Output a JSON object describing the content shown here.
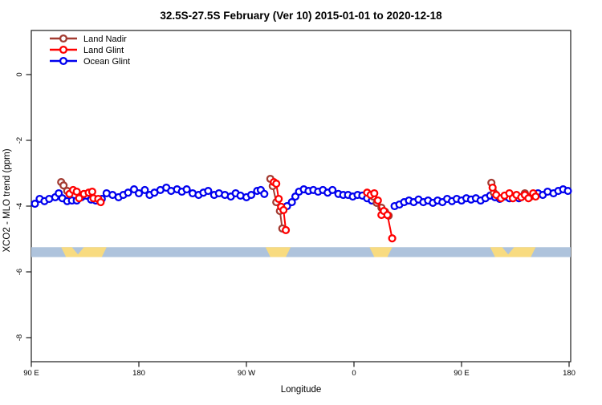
{
  "title": "32.5S-27.5S February (Ver 10)  2015-01-01 to 2020-12-18",
  "title_left": "32.5S-27.5S February (Ver 10)",
  "title_right": "2015-01-01 to 2020-12-18",
  "chart_data": {
    "type": "line",
    "title": "32.5S-27.5S February (Ver 10)  2015-01-01 to 2020-12-18",
    "xlabel": "Longitude",
    "ylabel": "XCO2 - MLO trend (ppm)",
    "x_axis": {
      "unit": "degrees eastward along axis starting at 90E (axis wraps 90E→180→90W→0→90E→180)",
      "range_deg": [
        0,
        450
      ],
      "tick_positions_deg": [
        0,
        90,
        180,
        270,
        360,
        450
      ],
      "tick_labels": [
        "90 E",
        "180",
        "90 W",
        "0",
        "90 E",
        "180"
      ]
    },
    "y_axis": {
      "ticks": [
        0,
        -2,
        -4,
        -6,
        -8
      ],
      "ylim": [
        -8.7,
        1.35
      ],
      "grid": false
    },
    "legend": {
      "position": "top-left",
      "entries": [
        {
          "label": "Land Nadir",
          "color": "#A33C32"
        },
        {
          "label": "Land Glint",
          "color": "#FF0000"
        },
        {
          "label": "Ocean Glint",
          "color": "#0000EE"
        }
      ]
    },
    "series": [
      {
        "name": "Land Nadir",
        "color": "#A33C32",
        "segments": [
          [
            [
              25,
              -3.27
            ],
            [
              27,
              -3.37
            ],
            [
              30,
              -3.54
            ]
          ],
          [
            [
              200,
              -3.17
            ],
            [
              202,
              -3.39
            ],
            [
              205,
              -3.88
            ],
            [
              208,
              -4.15
            ],
            [
              210,
              -4.68
            ]
          ],
          [
            [
              286,
              -3.71
            ],
            [
              289,
              -3.9
            ],
            [
              293,
              -4.05
            ],
            [
              296,
              -4.17
            ],
            [
              299,
              -4.29
            ]
          ],
          [
            [
              385,
              -3.29
            ],
            [
              387,
              -3.59
            ]
          ],
          [
            [
              413,
              -3.61
            ],
            [
              417,
              -3.73
            ]
          ]
        ]
      },
      {
        "name": "Land Glint",
        "color": "#FF0000",
        "segments": [
          [
            [
              32,
              -3.63
            ],
            [
              35,
              -3.51
            ],
            [
              38,
              -3.56
            ],
            [
              40,
              -3.76
            ],
            [
              44,
              -3.63
            ],
            [
              48,
              -3.59
            ],
            [
              51,
              -3.56
            ],
            [
              52,
              -3.76
            ],
            [
              56,
              -3.78
            ],
            [
              58,
              -3.88
            ]
          ],
          [
            [
              203,
              -3.27
            ],
            [
              205,
              -3.32
            ],
            [
              207,
              -3.78
            ],
            [
              209,
              -4.02
            ],
            [
              211,
              -4.12
            ],
            [
              213,
              -4.73
            ]
          ],
          [
            [
              281,
              -3.59
            ],
            [
              284,
              -3.66
            ],
            [
              287,
              -3.61
            ],
            [
              290,
              -3.83
            ],
            [
              293,
              -4.27
            ],
            [
              295,
              -4.15
            ],
            [
              298,
              -4.27
            ],
            [
              302,
              -4.98
            ]
          ],
          [
            [
              386,
              -3.44
            ],
            [
              389,
              -3.66
            ],
            [
              393,
              -3.76
            ],
            [
              396,
              -3.68
            ],
            [
              400,
              -3.61
            ],
            [
              403,
              -3.76
            ],
            [
              406,
              -3.66
            ],
            [
              410,
              -3.73
            ],
            [
              413,
              -3.66
            ],
            [
              416,
              -3.76
            ],
            [
              420,
              -3.61
            ],
            [
              422,
              -3.71
            ]
          ]
        ]
      },
      {
        "name": "Ocean Glint",
        "color": "#0000EE",
        "segments": [
          [
            [
              3,
              -3.93
            ],
            [
              7,
              -3.78
            ],
            [
              11,
              -3.85
            ],
            [
              15,
              -3.78
            ],
            [
              20,
              -3.73
            ],
            [
              23,
              -3.61
            ],
            [
              26,
              -3.76
            ],
            [
              30,
              -3.85
            ],
            [
              34,
              -3.83
            ],
            [
              38,
              -3.83
            ],
            [
              42,
              -3.73
            ],
            [
              46,
              -3.68
            ],
            [
              50,
              -3.8
            ],
            [
              54,
              -3.83
            ],
            [
              59,
              -3.78
            ],
            [
              63,
              -3.61
            ],
            [
              68,
              -3.66
            ],
            [
              73,
              -3.73
            ],
            [
              77,
              -3.66
            ],
            [
              81,
              -3.59
            ],
            [
              86,
              -3.49
            ],
            [
              90,
              -3.61
            ],
            [
              95,
              -3.51
            ],
            [
              99,
              -3.66
            ],
            [
              103,
              -3.59
            ],
            [
              108,
              -3.51
            ],
            [
              113,
              -3.44
            ],
            [
              117,
              -3.54
            ],
            [
              122,
              -3.49
            ],
            [
              126,
              -3.56
            ],
            [
              130,
              -3.49
            ],
            [
              135,
              -3.61
            ],
            [
              140,
              -3.66
            ],
            [
              144,
              -3.59
            ],
            [
              148,
              -3.54
            ],
            [
              153,
              -3.66
            ],
            [
              157,
              -3.61
            ],
            [
              162,
              -3.66
            ],
            [
              167,
              -3.71
            ],
            [
              171,
              -3.61
            ],
            [
              175,
              -3.68
            ],
            [
              180,
              -3.73
            ],
            [
              184,
              -3.66
            ],
            [
              189,
              -3.54
            ],
            [
              192,
              -3.51
            ],
            [
              195,
              -3.63
            ]
          ],
          [
            [
              214,
              -4.0
            ],
            [
              218,
              -3.88
            ],
            [
              221,
              -3.71
            ],
            [
              224,
              -3.56
            ],
            [
              228,
              -3.49
            ],
            [
              232,
              -3.54
            ],
            [
              236,
              -3.51
            ],
            [
              240,
              -3.56
            ],
            [
              244,
              -3.51
            ],
            [
              248,
              -3.59
            ],
            [
              252,
              -3.51
            ],
            [
              257,
              -3.63
            ],
            [
              261,
              -3.66
            ],
            [
              265,
              -3.66
            ],
            [
              269,
              -3.71
            ],
            [
              273,
              -3.66
            ],
            [
              277,
              -3.68
            ],
            [
              281,
              -3.76
            ],
            [
              285,
              -3.83
            ]
          ],
          [
            [
              304,
              -4.0
            ],
            [
              308,
              -3.95
            ],
            [
              312,
              -3.88
            ],
            [
              316,
              -3.83
            ],
            [
              320,
              -3.88
            ],
            [
              324,
              -3.8
            ],
            [
              328,
              -3.88
            ],
            [
              332,
              -3.83
            ],
            [
              336,
              -3.9
            ],
            [
              340,
              -3.83
            ],
            [
              344,
              -3.88
            ],
            [
              348,
              -3.78
            ],
            [
              352,
              -3.85
            ],
            [
              356,
              -3.78
            ],
            [
              360,
              -3.83
            ],
            [
              364,
              -3.76
            ],
            [
              368,
              -3.8
            ],
            [
              372,
              -3.76
            ],
            [
              376,
              -3.83
            ],
            [
              380,
              -3.76
            ],
            [
              384,
              -3.68
            ],
            [
              388,
              -3.73
            ],
            [
              392,
              -3.78
            ],
            [
              396,
              -3.71
            ],
            [
              400,
              -3.76
            ],
            [
              404,
              -3.71
            ],
            [
              408,
              -3.76
            ],
            [
              412,
              -3.68
            ],
            [
              416,
              -3.73
            ],
            [
              420,
              -3.66
            ],
            [
              424,
              -3.61
            ],
            [
              428,
              -3.66
            ],
            [
              432,
              -3.56
            ],
            [
              437,
              -3.61
            ],
            [
              441,
              -3.54
            ],
            [
              445,
              -3.49
            ],
            [
              449,
              -3.54
            ]
          ]
        ]
      }
    ],
    "surface_band": {
      "description": "ocean/land indicator strip",
      "y_range_ppm": [
        -5.25,
        -5.55
      ],
      "ocean_color": "#AEC3DC",
      "land_color": "#F8DB80",
      "land_segments": [
        {
          "from": 25,
          "to": 63,
          "notch": [
            34,
            44
          ]
        },
        {
          "from": 196,
          "to": 217
        },
        {
          "from": 283,
          "to": 302
        },
        {
          "from": 384,
          "to": 422,
          "notch": [
            394,
            404
          ]
        }
      ]
    }
  }
}
